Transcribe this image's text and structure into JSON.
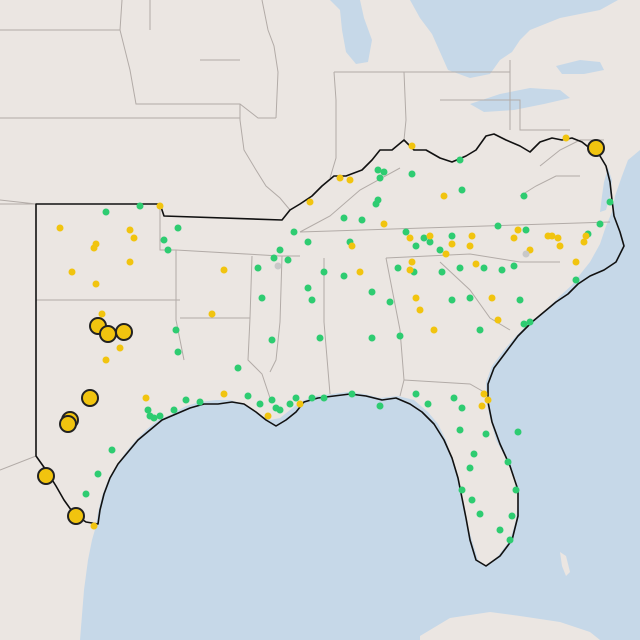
{
  "map": {
    "colors": {
      "water": "#c6d8e8",
      "land": "#ebe6e2",
      "land_shadow": "#e2ddd8",
      "state_border": "#b2aba7",
      "region_outline": "#111111",
      "marker_green": "#2ecc71",
      "marker_yellow": "#f1c40f",
      "marker_gray": "#c8c8c8",
      "marker_stroke": "#222222"
    },
    "legend": []
  }
}
